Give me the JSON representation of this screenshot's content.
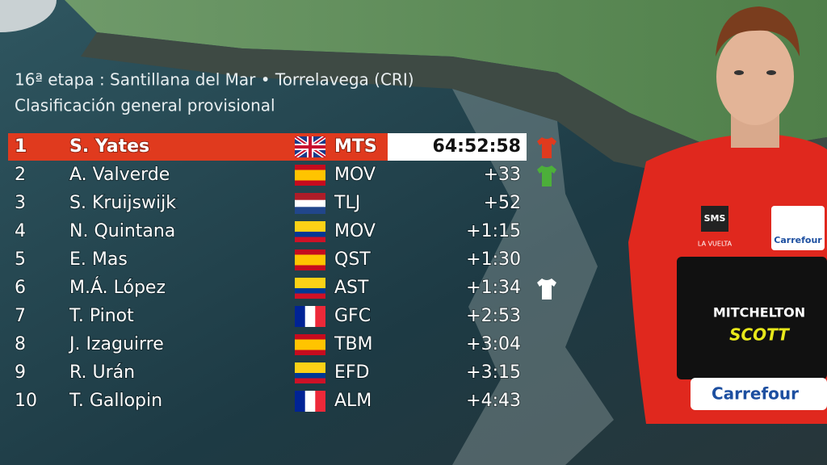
{
  "header": {
    "stage": "16ª etapa : Santillana del Mar • Torrelavega (CRI)",
    "subtitle": "Clasificación general provisional"
  },
  "table": {
    "rows": [
      [
        "1",
        "S. Yates",
        "MTS",
        "64:52:58"
      ],
      [
        "2",
        "A. Valverde",
        "MOV",
        "+33"
      ],
      [
        "3",
        "S. Kruijswijk",
        "TLJ",
        "+52"
      ],
      [
        "4",
        "N. Quintana",
        "MOV",
        "+1:15"
      ],
      [
        "5",
        "E. Mas",
        "QST",
        "+1:30"
      ],
      [
        "6",
        "M.Á. López",
        "AST",
        "+1:34"
      ],
      [
        "7",
        "T. Pinot",
        "GFC",
        "+2:53"
      ],
      [
        "8",
        "J. Izaguirre",
        "TBM",
        "+3:04"
      ],
      [
        "9",
        "R. Urán",
        "EFD",
        "+3:15"
      ],
      [
        "10",
        "T. Gallopin",
        "ALM",
        "+4:43"
      ]
    ]
  },
  "rider": {
    "jersey_texts": [
      "SMS",
      "LA VUELTA",
      "Carrefour",
      "MITCHELTON",
      "SCOTT",
      "Carrefour"
    ]
  }
}
